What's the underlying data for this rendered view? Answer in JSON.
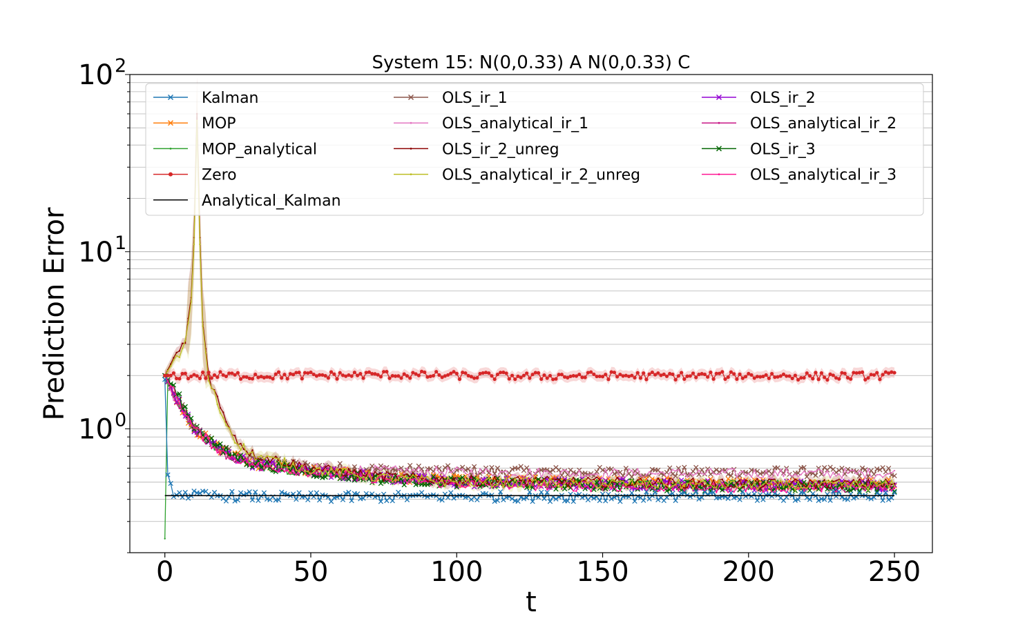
{
  "chart_data": {
    "type": "line",
    "title": "System 15: N(0,0.33) A N(0,0.33) C",
    "xlabel": "t",
    "ylabel": "Prediction Error",
    "xlim": [
      -12,
      263
    ],
    "ylim": [
      0.2,
      100
    ],
    "yscale": "log",
    "grid": "y-major-and-minor",
    "legend_placement": "top",
    "x_ticks": [
      0,
      50,
      100,
      150,
      200,
      250
    ],
    "x_tick_labels": [
      "0",
      "50",
      "100",
      "150",
      "200",
      "250"
    ],
    "y_tick_labels": [
      {
        "value": 1,
        "base": "10",
        "exp": "0"
      },
      {
        "value": 10,
        "base": "10",
        "exp": "1"
      },
      {
        "value": 100,
        "base": "10",
        "exp": "2"
      }
    ],
    "series": [
      {
        "name": "Kalman",
        "color": "#1f77b4",
        "marker": "x",
        "values": [
          [
            0,
            1.9
          ],
          [
            1,
            0.55
          ],
          [
            3,
            0.44
          ],
          [
            10,
            0.42
          ],
          [
            50,
            0.41
          ],
          [
            100,
            0.415
          ],
          [
            150,
            0.415
          ],
          [
            200,
            0.415
          ],
          [
            250,
            0.42
          ]
        ]
      },
      {
        "name": "MOP",
        "color": "#ff7f0e",
        "marker": "x",
        "values": [
          [
            0,
            2.0
          ],
          [
            3,
            1.6
          ],
          [
            10,
            1.0
          ],
          [
            20,
            0.75
          ],
          [
            30,
            0.64
          ],
          [
            50,
            0.58
          ],
          [
            75,
            0.53
          ],
          [
            100,
            0.51
          ],
          [
            150,
            0.5
          ],
          [
            200,
            0.49
          ],
          [
            250,
            0.49
          ]
        ]
      },
      {
        "name": "MOP_analytical",
        "color": "#2ca02c",
        "marker": ".",
        "values": [
          [
            0,
            0.24
          ],
          [
            0.5,
            0.8
          ],
          [
            1,
            1.9
          ],
          [
            3,
            1.6
          ],
          [
            10,
            1.0
          ],
          [
            20,
            0.74
          ],
          [
            30,
            0.63
          ],
          [
            50,
            0.57
          ],
          [
            75,
            0.52
          ],
          [
            100,
            0.5
          ],
          [
            150,
            0.49
          ],
          [
            200,
            0.48
          ],
          [
            250,
            0.48
          ]
        ]
      },
      {
        "name": "Zero",
        "color": "#d62728",
        "marker": "o",
        "values": [
          [
            0,
            2.0
          ],
          [
            25,
            2.0
          ],
          [
            50,
            2.0
          ],
          [
            75,
            2.02
          ],
          [
            100,
            2.0
          ],
          [
            125,
            1.98
          ],
          [
            150,
            2.0
          ],
          [
            175,
            1.99
          ],
          [
            200,
            2.0
          ],
          [
            225,
            1.98
          ],
          [
            250,
            2.0
          ]
        ]
      },
      {
        "name": "Analytical_Kalman",
        "color": "#000000",
        "marker": "none",
        "values": [
          [
            0,
            0.42
          ],
          [
            250,
            0.42
          ]
        ]
      },
      {
        "name": "OLS_ir_1",
        "color": "#8c564b",
        "marker": "x",
        "values": [
          [
            0,
            2.0
          ],
          [
            3,
            1.55
          ],
          [
            10,
            1.0
          ],
          [
            20,
            0.76
          ],
          [
            30,
            0.66
          ],
          [
            50,
            0.61
          ],
          [
            75,
            0.59
          ],
          [
            100,
            0.58
          ],
          [
            150,
            0.57
          ],
          [
            200,
            0.57
          ],
          [
            250,
            0.57
          ]
        ]
      },
      {
        "name": "OLS_analytical_ir_1",
        "color": "#e377c2",
        "marker": ".",
        "values": [
          [
            0,
            2.0
          ],
          [
            3,
            1.5
          ],
          [
            10,
            0.98
          ],
          [
            20,
            0.75
          ],
          [
            30,
            0.65
          ],
          [
            50,
            0.6
          ],
          [
            75,
            0.58
          ],
          [
            100,
            0.57
          ],
          [
            150,
            0.56
          ],
          [
            200,
            0.56
          ],
          [
            250,
            0.56
          ]
        ]
      },
      {
        "name": "OLS_ir_2_unreg",
        "color": "#8b0000",
        "marker": ".",
        "values": [
          [
            0,
            2.0
          ],
          [
            3,
            2.5
          ],
          [
            5,
            2.8
          ],
          [
            7,
            3.2
          ],
          [
            9,
            5.5
          ],
          [
            10,
            12
          ],
          [
            11,
            60
          ],
          [
            12,
            12
          ],
          [
            13,
            4
          ],
          [
            15,
            2.0
          ],
          [
            20,
            1.2
          ],
          [
            25,
            0.85
          ],
          [
            30,
            0.72
          ],
          [
            50,
            0.6
          ],
          [
            75,
            0.54
          ],
          [
            100,
            0.51
          ],
          [
            150,
            0.5
          ],
          [
            200,
            0.49
          ],
          [
            250,
            0.49
          ]
        ]
      },
      {
        "name": "OLS_analytical_ir_2_unreg",
        "color": "#bcbd22",
        "marker": ".",
        "values": [
          [
            0,
            2.0
          ],
          [
            3,
            2.4
          ],
          [
            5,
            2.6
          ],
          [
            7,
            3.0
          ],
          [
            9,
            5.2
          ],
          [
            10,
            11
          ],
          [
            11,
            55
          ],
          [
            12,
            11
          ],
          [
            13,
            3.8
          ],
          [
            15,
            1.9
          ],
          [
            20,
            1.15
          ],
          [
            25,
            0.83
          ],
          [
            30,
            0.71
          ],
          [
            50,
            0.59
          ],
          [
            75,
            0.53
          ],
          [
            100,
            0.5
          ],
          [
            150,
            0.49
          ],
          [
            200,
            0.48
          ],
          [
            250,
            0.48
          ]
        ]
      },
      {
        "name": "OLS_ir_2",
        "color": "#9400d3",
        "marker": "x",
        "values": [
          [
            0,
            2.0
          ],
          [
            3,
            1.6
          ],
          [
            10,
            1.0
          ],
          [
            20,
            0.74
          ],
          [
            30,
            0.64
          ],
          [
            50,
            0.58
          ],
          [
            75,
            0.53
          ],
          [
            100,
            0.5
          ],
          [
            150,
            0.49
          ],
          [
            200,
            0.48
          ],
          [
            250,
            0.48
          ]
        ]
      },
      {
        "name": "OLS_analytical_ir_2",
        "color": "#c71585",
        "marker": ".",
        "values": [
          [
            0,
            2.0
          ],
          [
            3,
            1.58
          ],
          [
            10,
            0.99
          ],
          [
            20,
            0.73
          ],
          [
            30,
            0.63
          ],
          [
            50,
            0.57
          ],
          [
            75,
            0.52
          ],
          [
            100,
            0.5
          ],
          [
            150,
            0.48
          ],
          [
            200,
            0.47
          ],
          [
            250,
            0.47
          ]
        ]
      },
      {
        "name": "OLS_ir_3",
        "color": "#006400",
        "marker": "x",
        "values": [
          [
            0,
            2.0
          ],
          [
            3,
            1.7
          ],
          [
            10,
            1.05
          ],
          [
            20,
            0.75
          ],
          [
            30,
            0.64
          ],
          [
            50,
            0.57
          ],
          [
            75,
            0.52
          ],
          [
            100,
            0.5
          ],
          [
            150,
            0.48
          ],
          [
            200,
            0.47
          ],
          [
            250,
            0.47
          ]
        ]
      },
      {
        "name": "OLS_analytical_ir_3",
        "color": "#ff1493",
        "marker": ".",
        "values": [
          [
            0,
            2.0
          ],
          [
            3,
            1.62
          ],
          [
            10,
            1.0
          ],
          [
            20,
            0.73
          ],
          [
            30,
            0.63
          ],
          [
            50,
            0.57
          ],
          [
            75,
            0.52
          ],
          [
            100,
            0.49
          ],
          [
            150,
            0.47
          ],
          [
            200,
            0.465
          ],
          [
            250,
            0.465
          ]
        ]
      }
    ]
  }
}
